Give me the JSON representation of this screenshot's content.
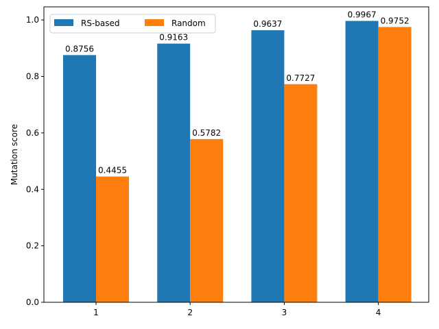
{
  "chart_data": {
    "type": "bar",
    "categories": [
      "1",
      "2",
      "3",
      "4"
    ],
    "series": [
      {
        "name": "RS-based",
        "color": "#1f77b4",
        "values": [
          0.8756,
          0.9163,
          0.9637,
          0.9967
        ]
      },
      {
        "name": "Random",
        "color": "#ff7f0e",
        "values": [
          0.4455,
          0.5782,
          0.7727,
          0.9752
        ]
      }
    ],
    "data_labels": [
      [
        "0.8756",
        "0.9163",
        "0.9637",
        "0.9967"
      ],
      [
        "0.4455",
        "0.5782",
        "0.7727",
        "0.9752"
      ]
    ],
    "title": "",
    "xlabel": "",
    "ylabel": "Mutation score",
    "ylim": [
      0,
      1.0465
    ],
    "yticks": [
      0.0,
      0.2,
      0.4,
      0.6,
      0.8,
      1.0
    ],
    "ytick_labels": [
      "0.0",
      "0.2",
      "0.4",
      "0.6",
      "0.8",
      "1.0"
    ],
    "grid": false,
    "legend": {
      "placement": "top-left",
      "columns": 2
    }
  }
}
